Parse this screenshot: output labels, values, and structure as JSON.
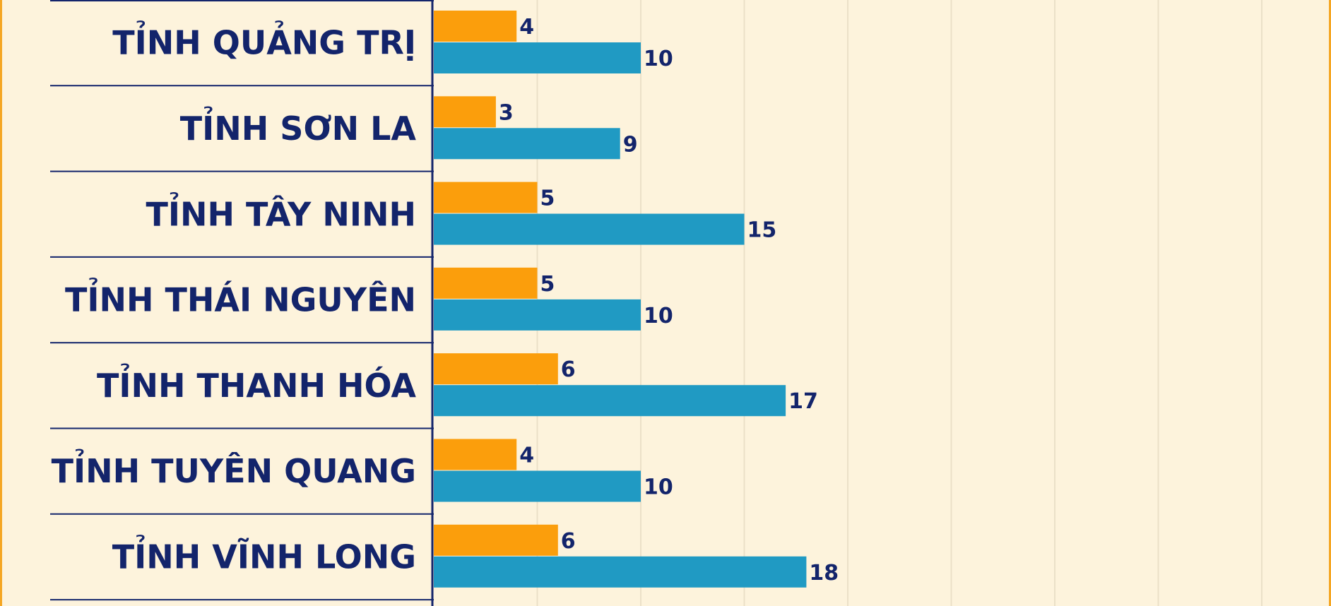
{
  "colors": {
    "background": "#fdf3dc",
    "border": "#f5a623",
    "grid": "#ebe0c8",
    "text": "#13246b",
    "axis": "#13246b"
  },
  "chart_data": {
    "type": "bar",
    "orientation": "horizontal",
    "categories": [
      "TỈNH QUẢNG TRỊ",
      "TỈNH SƠN LA",
      "TỈNH TÂY NINH",
      "TỈNH THÁI NGUYÊN",
      "TỈNH THANH HÓA",
      "TỈNH TUYÊN QUANG",
      "TỈNH VĨNH LONG"
    ],
    "series": [
      {
        "color": "#fb9e0c",
        "values": [
          4,
          3,
          5,
          5,
          6,
          4,
          6
        ]
      },
      {
        "color": "#209ac3",
        "values": [
          10,
          9,
          15,
          10,
          17,
          10,
          18
        ]
      }
    ],
    "xlim": [
      0,
      43
    ],
    "grid": true,
    "data_labels": true
  }
}
